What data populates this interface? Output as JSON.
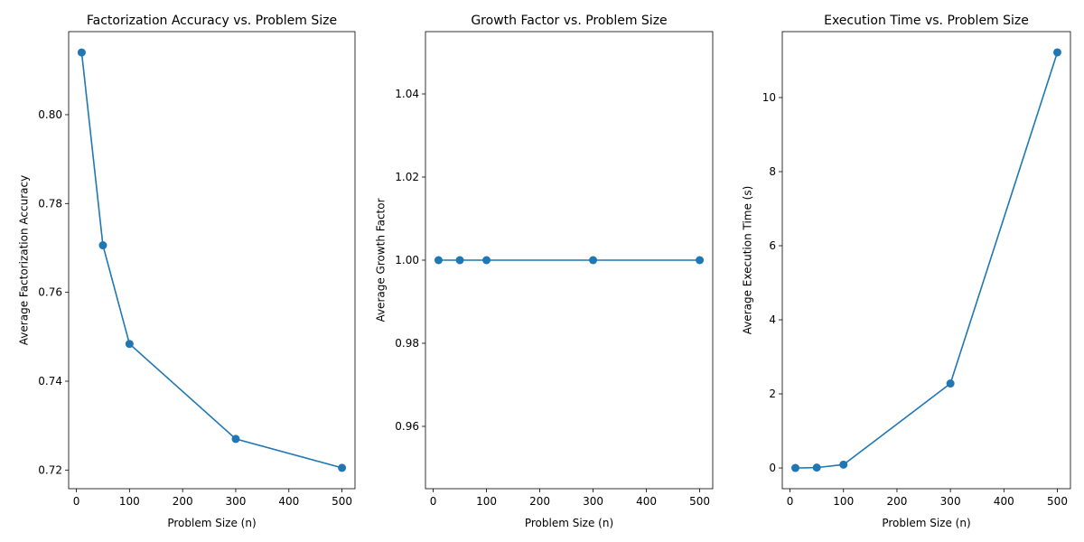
{
  "chart_data": [
    {
      "type": "line",
      "title": "Factorization Accuracy vs. Problem Size",
      "xlabel": "Problem Size (n)",
      "ylabel": "Average Factorization Accuracy",
      "x": [
        10,
        50,
        100,
        300,
        500
      ],
      "series": [
        {
          "values": [
            0.814,
            0.7706,
            0.7484,
            0.727,
            0.7205
          ]
        }
      ],
      "xlim": [
        -14.5,
        524.5
      ],
      "ylim": [
        0.7158,
        0.8187
      ],
      "xticks": [
        0,
        100,
        200,
        300,
        400,
        500
      ],
      "xtick_labels": [
        "0",
        "100",
        "200",
        "300",
        "400",
        "500"
      ],
      "yticks": [
        0.72,
        0.74,
        0.76,
        0.78,
        0.8
      ],
      "ytick_labels": [
        "0.72",
        "0.74",
        "0.76",
        "0.78",
        "0.80"
      ],
      "grid": false,
      "markers": "circle"
    },
    {
      "type": "line",
      "title": "Growth Factor vs. Problem Size",
      "xlabel": "Problem Size (n)",
      "ylabel": "Average Growth Factor",
      "x": [
        10,
        50,
        100,
        300,
        500
      ],
      "series": [
        {
          "values": [
            1.0,
            1.0,
            1.0,
            1.0,
            1.0
          ]
        }
      ],
      "xlim": [
        -14.5,
        524.5
      ],
      "ylim": [
        0.945,
        1.055
      ],
      "xticks": [
        0,
        100,
        200,
        300,
        400,
        500
      ],
      "xtick_labels": [
        "0",
        "100",
        "200",
        "300",
        "400",
        "500"
      ],
      "yticks": [
        0.96,
        0.98,
        1.0,
        1.02,
        1.04
      ],
      "ytick_labels": [
        "0.96",
        "0.98",
        "1.00",
        "1.02",
        "1.04"
      ],
      "grid": false,
      "markers": "circle"
    },
    {
      "type": "line",
      "title": "Execution Time vs. Problem Size",
      "xlabel": "Problem Size (n)",
      "ylabel": "Average Execution Time (s)",
      "x": [
        10,
        50,
        100,
        300,
        500
      ],
      "series": [
        {
          "values": [
            0.0,
            0.01,
            0.09,
            2.28,
            11.22
          ]
        }
      ],
      "xlim": [
        -14.5,
        524.5
      ],
      "ylim": [
        -0.56,
        11.78
      ],
      "xticks": [
        0,
        100,
        200,
        300,
        400,
        500
      ],
      "xtick_labels": [
        "0",
        "100",
        "200",
        "300",
        "400",
        "500"
      ],
      "yticks": [
        0,
        2,
        4,
        6,
        8,
        10
      ],
      "ytick_labels": [
        "0",
        "2",
        "4",
        "6",
        "8",
        "10"
      ],
      "grid": false,
      "markers": "circle"
    }
  ],
  "colors": {
    "line": "#1f77b4",
    "axes": "#000000",
    "background": "#ffffff"
  }
}
